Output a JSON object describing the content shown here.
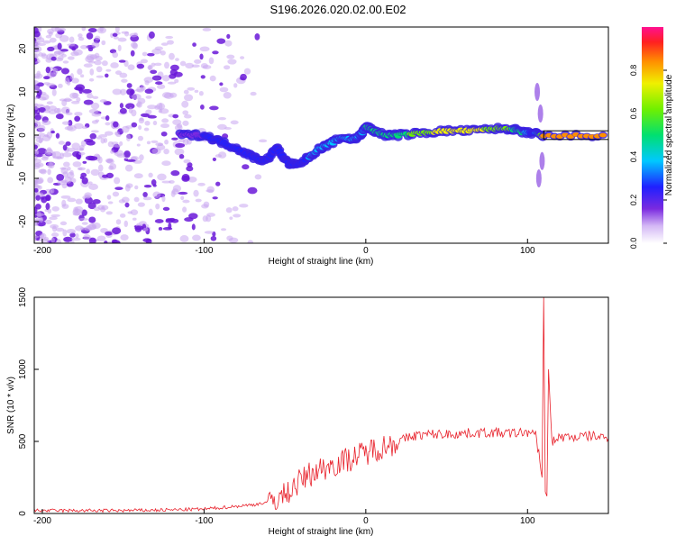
{
  "title": "S196.2026.020.02.00.E02",
  "colors": {
    "axis": "#000000",
    "snr_line": "#e8202a",
    "noise": "#c9a6f0",
    "noise_dark": "#6a18d8"
  },
  "chart_data": [
    {
      "type": "heatmap",
      "name": "spectrogram",
      "title": "",
      "xlabel": "Height of straight line (km)",
      "ylabel": "Frequency (Hz)",
      "xlim": [
        -205,
        150
      ],
      "ylim": [
        -25,
        25
      ],
      "x_ticks": [
        -200,
        -100,
        0,
        100
      ],
      "y_ticks": [
        -20,
        -10,
        0,
        10,
        20
      ],
      "ridge": {
        "description": "dominant frequency track",
        "x": [
          -115,
          -100,
          -90,
          -80,
          -70,
          -62,
          -55,
          -48,
          -42,
          -35,
          -28,
          -22,
          -15,
          -8,
          -3,
          0,
          5,
          12,
          20,
          35,
          50,
          65,
          80,
          90,
          98,
          104,
          110,
          150
        ],
        "y": [
          0,
          0,
          -1.5,
          -3,
          -5,
          -6,
          -3,
          -6.5,
          -7,
          -5,
          -3,
          -2,
          -0.5,
          -1,
          0,
          2,
          1,
          0,
          0,
          0.5,
          1,
          1,
          1.5,
          1.5,
          0.5,
          0.5,
          -0.3,
          0
        ],
        "amplitude": [
          0.2,
          0.25,
          0.3,
          0.3,
          0.25,
          0.35,
          0.3,
          0.3,
          0.35,
          0.4,
          0.45,
          0.55,
          0.5,
          0.45,
          0.5,
          0.55,
          0.6,
          0.65,
          0.65,
          0.75,
          0.85,
          0.85,
          0.75,
          0.7,
          0.55,
          0.3,
          0.9,
          0.95
        ]
      },
      "colorbar": {
        "label": "Normalized spectral amplitude",
        "range": [
          0,
          1
        ],
        "ticks": [
          "0.0",
          "0.2",
          "0.4",
          "0.6",
          "0.8"
        ]
      }
    },
    {
      "type": "line",
      "name": "snr",
      "title": "",
      "xlabel": "Height of straight line (km)",
      "ylabel": "SNR (10 * v/v)",
      "xlim": [
        -205,
        150
      ],
      "ylim": [
        0,
        1500
      ],
      "x_ticks": [
        -200,
        -100,
        0,
        100
      ],
      "y_ticks": [
        0,
        500,
        1000,
        1500
      ],
      "series": [
        {
          "name": "SNR",
          "x": [
            -205,
            -180,
            -150,
            -120,
            -100,
            -80,
            -70,
            -60,
            -50,
            -45,
            -40,
            -35,
            -30,
            -25,
            -20,
            -15,
            -10,
            -5,
            0,
            5,
            10,
            15,
            20,
            25,
            30,
            40,
            50,
            60,
            70,
            80,
            90,
            95,
            100,
            105,
            107,
            109,
            110,
            111,
            112,
            113,
            115,
            120,
            130,
            140,
            150
          ],
          "y": [
            20,
            20,
            20,
            25,
            30,
            50,
            60,
            80,
            130,
            180,
            230,
            270,
            300,
            320,
            340,
            360,
            380,
            400,
            420,
            450,
            460,
            480,
            500,
            520,
            540,
            550,
            550,
            555,
            560,
            560,
            555,
            560,
            565,
            540,
            420,
            250,
            1500,
            150,
            120,
            1000,
            500,
            530,
            530,
            540,
            520
          ]
        }
      ]
    }
  ]
}
